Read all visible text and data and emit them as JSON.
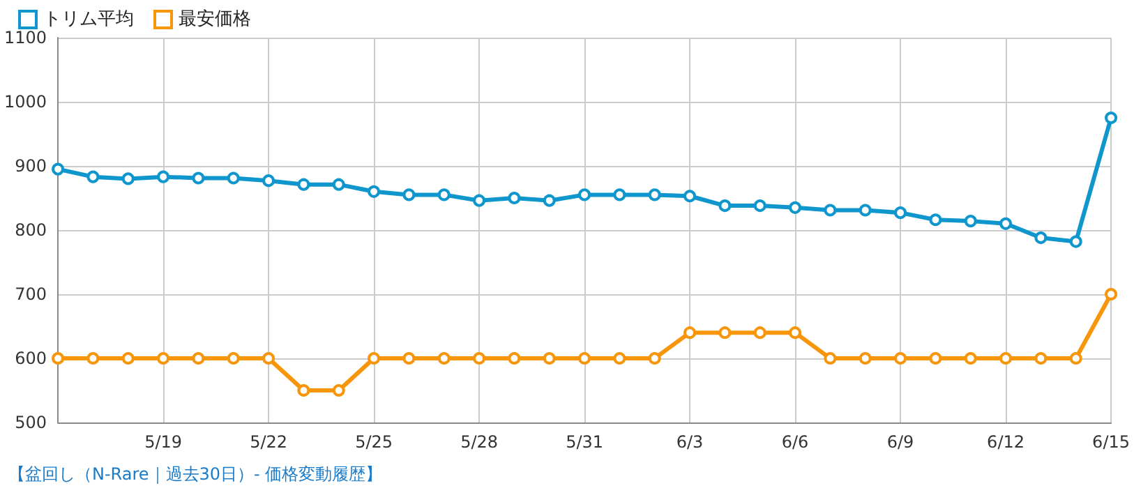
{
  "chart_data": {
    "type": "line",
    "categories": [
      null,
      null,
      null,
      "5/19",
      null,
      null,
      "5/22",
      null,
      null,
      "5/25",
      null,
      null,
      "5/28",
      null,
      null,
      "5/31",
      null,
      null,
      "6/3",
      null,
      null,
      "6/6",
      null,
      null,
      "6/9",
      null,
      null,
      "6/12",
      null,
      null,
      "6/15"
    ],
    "series": [
      {
        "name": "トリム平均",
        "color": "#0e96cd",
        "values": [
          895,
          883,
          880,
          883,
          881,
          881,
          877,
          871,
          871,
          860,
          855,
          855,
          846,
          850,
          846,
          855,
          855,
          855,
          853,
          838,
          838,
          835,
          831,
          831,
          827,
          816,
          814,
          810,
          788,
          782,
          975
        ]
      },
      {
        "name": "最安価格",
        "color": "#f7950b",
        "values": [
          600,
          600,
          600,
          600,
          600,
          600,
          600,
          550,
          550,
          600,
          600,
          600,
          600,
          600,
          600,
          600,
          600,
          600,
          640,
          640,
          640,
          640,
          600,
          600,
          600,
          600,
          600,
          600,
          600,
          600,
          700
        ]
      }
    ],
    "ylim": [
      500,
      1100
    ],
    "yticks": [
      500,
      600,
      700,
      800,
      900,
      1000,
      1100
    ],
    "grid": true,
    "legend": "top left",
    "marker": "circle",
    "line_style": "solid",
    "annotations": [
      "【盆回し（N-Rare｜過去30日）- 価格変動履歴】"
    ]
  }
}
